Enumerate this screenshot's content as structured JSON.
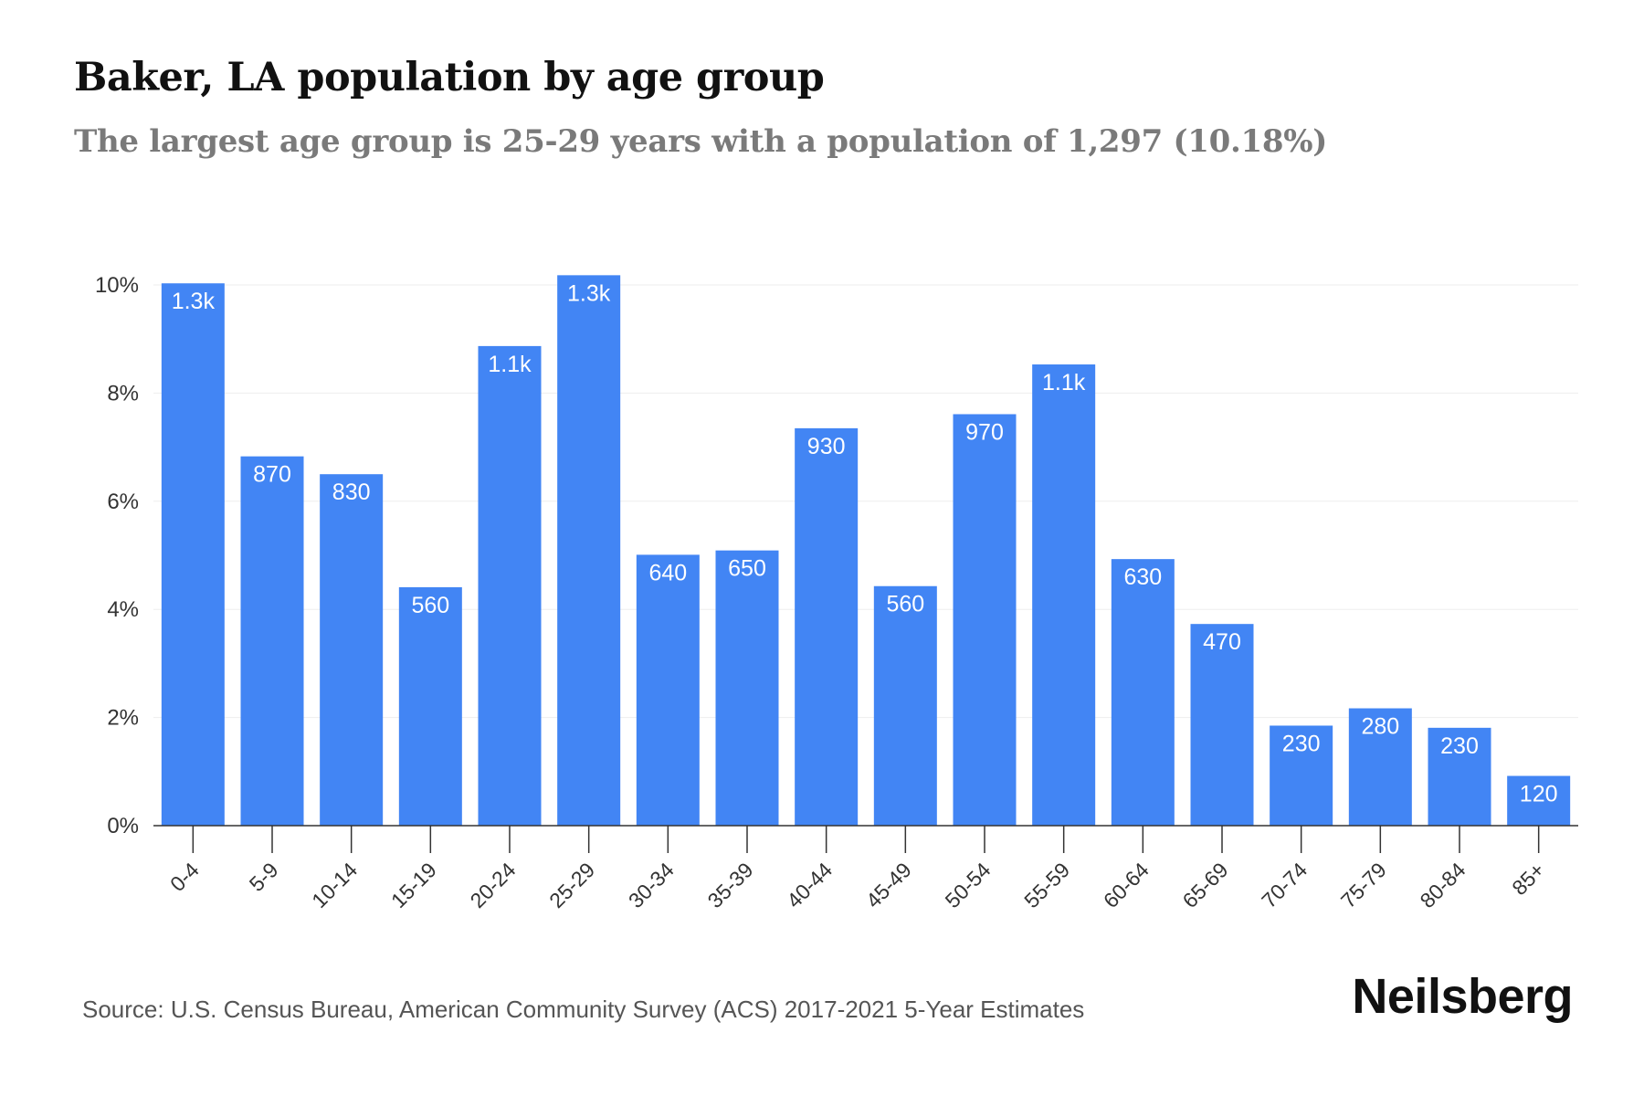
{
  "header": {
    "title": "Baker, LA population by age group",
    "subtitle": "The largest age group is 25-29 years with a population of 1,297 (10.18%)"
  },
  "footer": {
    "source": "Source: U.S. Census Bureau, American Community Survey (ACS) 2017-2021 5-Year Estimates",
    "brand": "Neilsberg"
  },
  "colors": {
    "bar": "#4285f4",
    "grid": "#eeeeee",
    "axis": "#333333"
  },
  "chart_data": {
    "type": "bar",
    "categories": [
      "0-4",
      "5-9",
      "10-14",
      "15-19",
      "20-24",
      "25-29",
      "30-34",
      "35-39",
      "40-44",
      "45-49",
      "50-54",
      "55-59",
      "60-64",
      "65-69",
      "70-74",
      "75-79",
      "80-84",
      "85+"
    ],
    "values": [
      10.03,
      6.83,
      6.5,
      4.41,
      8.87,
      10.18,
      5.01,
      5.09,
      7.35,
      4.43,
      7.61,
      8.53,
      4.93,
      3.73,
      1.85,
      2.17,
      1.81,
      0.92
    ],
    "data_labels": [
      "1.3k",
      "870",
      "830",
      "560",
      "1.1k",
      "1.3k",
      "640",
      "650",
      "930",
      "560",
      "970",
      "1.1k",
      "630",
      "470",
      "230",
      "280",
      "230",
      "120"
    ],
    "y_ticks": [
      "0%",
      "2%",
      "4%",
      "6%",
      "8%",
      "10%"
    ],
    "y_tick_values": [
      0,
      2,
      4,
      6,
      8,
      10
    ],
    "ylim": [
      0,
      10
    ],
    "grid": true
  }
}
